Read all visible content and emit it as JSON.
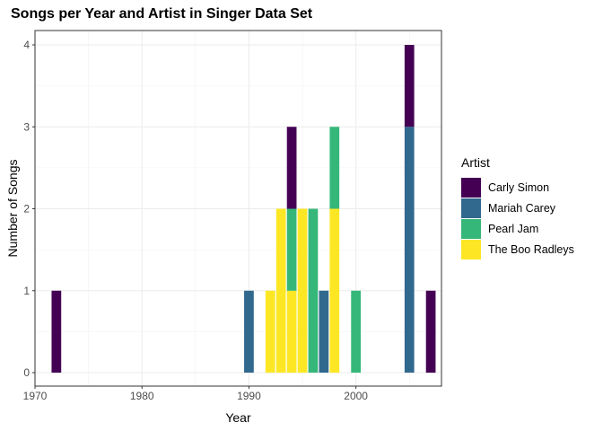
{
  "chart_data": {
    "type": "bar",
    "stacked": true,
    "title": "Songs per Year and Artist in Singer Data Set",
    "xlabel": "Year",
    "ylabel": "Number of Songs",
    "xlim": [
      1970,
      2008
    ],
    "ylim": [
      0,
      4
    ],
    "x_ticks": [
      1970,
      1980,
      1990,
      2000
    ],
    "y_ticks": [
      0,
      1,
      2,
      3,
      4
    ],
    "grid": true,
    "legend": {
      "title": "Artist",
      "position": "right"
    },
    "series": [
      {
        "name": "Carly Simon",
        "color": "#440154",
        "points": [
          {
            "x": 1972,
            "y": 1
          },
          {
            "x": 1994,
            "y": 1
          },
          {
            "x": 2005,
            "y": 1
          },
          {
            "x": 2007,
            "y": 1
          }
        ]
      },
      {
        "name": "Mariah Carey",
        "color": "#31688E",
        "points": [
          {
            "x": 1990,
            "y": 1
          },
          {
            "x": 1997,
            "y": 1
          },
          {
            "x": 2005,
            "y": 3
          }
        ]
      },
      {
        "name": "Pearl Jam",
        "color": "#35B779",
        "points": [
          {
            "x": 1994,
            "y": 1
          },
          {
            "x": 1996,
            "y": 2
          },
          {
            "x": 1998,
            "y": 1
          },
          {
            "x": 2000,
            "y": 1
          }
        ]
      },
      {
        "name": "The Boo Radleys",
        "color": "#FDE725",
        "points": [
          {
            "x": 1992,
            "y": 1
          },
          {
            "x": 1993,
            "y": 2
          },
          {
            "x": 1994,
            "y": 1
          },
          {
            "x": 1995,
            "y": 2
          },
          {
            "x": 1998,
            "y": 2
          }
        ]
      }
    ]
  }
}
